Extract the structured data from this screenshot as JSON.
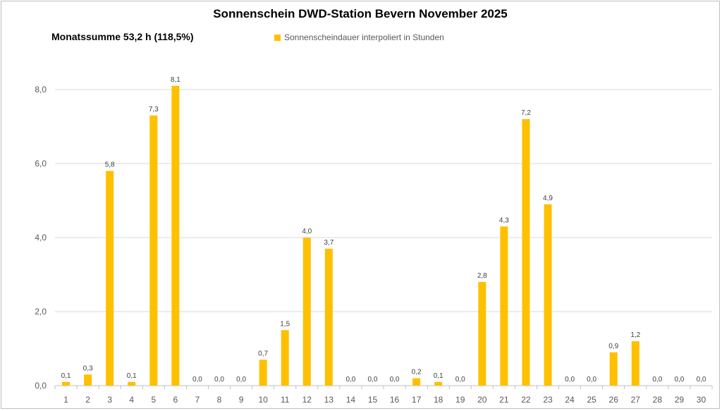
{
  "chart_data": {
    "type": "bar",
    "title": "Sonnenschein DWD-Station Bevern November 2025",
    "subtitle": "Monatssumme 53,2 h (118,5%)",
    "xlabel": "",
    "ylabel": "",
    "ylim": [
      0,
      8.8
    ],
    "y_ticks": [
      "0,0",
      "2,0",
      "4,0",
      "6,0",
      "8,0"
    ],
    "y_tick_values": [
      0,
      2,
      4,
      6,
      8
    ],
    "grid": true,
    "legend_position": "top",
    "categories": [
      "1",
      "2",
      "3",
      "4",
      "5",
      "6",
      "7",
      "8",
      "9",
      "10",
      "11",
      "12",
      "13",
      "14",
      "15",
      "16",
      "17",
      "18",
      "19",
      "20",
      "21",
      "22",
      "23",
      "24",
      "25",
      "26",
      "27",
      "28",
      "29",
      "30"
    ],
    "series": [
      {
        "name": "Sonnenscheindauer interpoliert in Stunden",
        "color": "#ffc000",
        "values": [
          0.1,
          0.3,
          5.8,
          0.1,
          7.3,
          8.1,
          0.0,
          0.0,
          0.0,
          0.7,
          1.5,
          4.0,
          3.7,
          0.0,
          0.0,
          0.0,
          0.2,
          0.1,
          0.0,
          2.8,
          4.3,
          7.2,
          4.9,
          0.0,
          0.0,
          0.9,
          1.2,
          0.0,
          0.0,
          0.0
        ],
        "labels": [
          "0,1",
          "0,3",
          "5,8",
          "0,1",
          "7,3",
          "8,1",
          "0,0",
          "0,0",
          "0,0",
          "0,7",
          "1,5",
          "4,0",
          "3,7",
          "0,0",
          "0,0",
          "0,0",
          "0,2",
          "0,1",
          "0,0",
          "2,8",
          "4,3",
          "7,2",
          "4,9",
          "0,0",
          "0,0",
          "0,9",
          "1,2",
          "0,0",
          "0,0",
          "0,0"
        ]
      }
    ]
  },
  "colors": {
    "bar": "#ffc000",
    "grid": "#d9d9d9",
    "axis": "#bfbfbf"
  }
}
